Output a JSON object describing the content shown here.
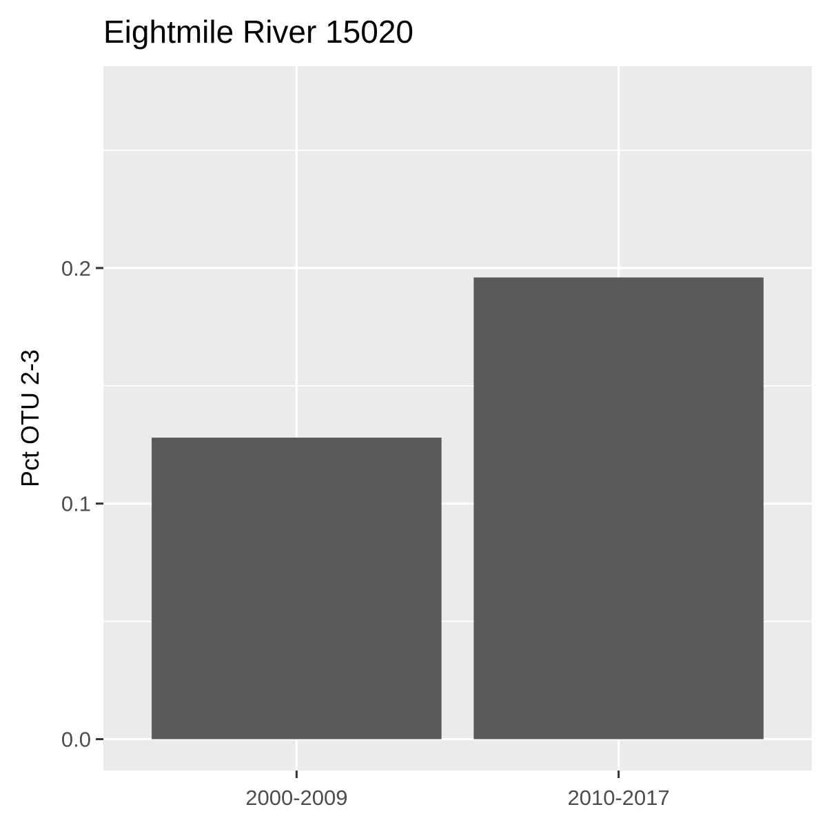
{
  "chart_data": {
    "type": "bar",
    "title": "Eightmile River 15020",
    "xlabel": "",
    "ylabel": "Pct OTU 2-3",
    "categories": [
      "2000-2009",
      "2010-2017"
    ],
    "values": [
      0.128,
      0.196
    ],
    "ylim": [
      -0.0133,
      0.2857
    ],
    "yticks": [
      0.0,
      0.1,
      0.2
    ],
    "ytick_labels": [
      "0.0",
      "0.1",
      "0.2"
    ],
    "grid": true,
    "legend": "none",
    "colors": {
      "bar": "#595959",
      "panel": "#ebebeb",
      "grid": "#ffffff",
      "tick": "#333333"
    }
  }
}
